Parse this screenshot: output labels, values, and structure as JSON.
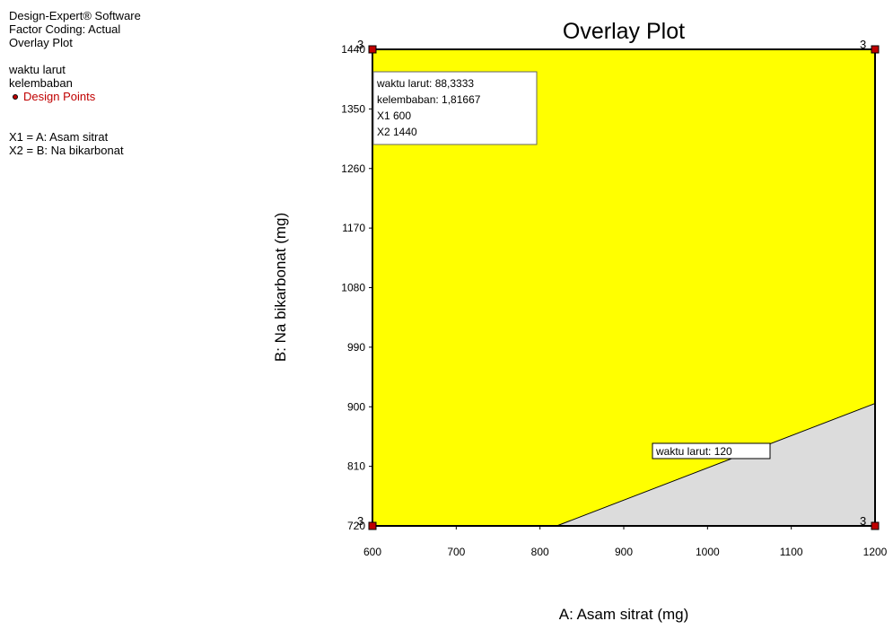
{
  "side_panel": {
    "software": "Design-Expert® Software",
    "coding": "Factor Coding: Actual",
    "plot_name": "Overlay Plot",
    "response1": "waktu larut",
    "response2": "kelembaban",
    "design_points": "Design Points",
    "x1_def": "X1 = A: Asam sitrat",
    "x2_def": "X2 = B: Na bikarbonat"
  },
  "colors": {
    "feasible": "#ffff00",
    "infeasible": "#dcdcdc",
    "design_point": "#c00000"
  },
  "chart_data": {
    "type": "contour",
    "title": "Overlay Plot",
    "xlabel": "A: Asam sitrat (mg)",
    "ylabel": "B: Na bikarbonat (mg)",
    "xlim": [
      600,
      1200
    ],
    "ylim": [
      720,
      1440
    ],
    "xticks": [
      600,
      700,
      800,
      900,
      1000,
      1100,
      1200
    ],
    "yticks": [
      720,
      810,
      900,
      990,
      1080,
      1170,
      1260,
      1350,
      1440
    ],
    "feasible_region": "yellow",
    "boundary": {
      "label": "waktu larut: 120",
      "points": [
        [
          820,
          720
        ],
        [
          1200,
          905
        ]
      ]
    },
    "design_points": [
      {
        "x": 600,
        "y": 720,
        "label": "3"
      },
      {
        "x": 600,
        "y": 1440,
        "label": "3"
      },
      {
        "x": 1200,
        "y": 720,
        "label": "3"
      },
      {
        "x": 1200,
        "y": 1440,
        "label": "3"
      }
    ],
    "flag": {
      "lines": [
        "waktu larut:  88,3333",
        "kelembaban:  1,81667",
        "X1  600",
        "X2  1440"
      ]
    }
  }
}
